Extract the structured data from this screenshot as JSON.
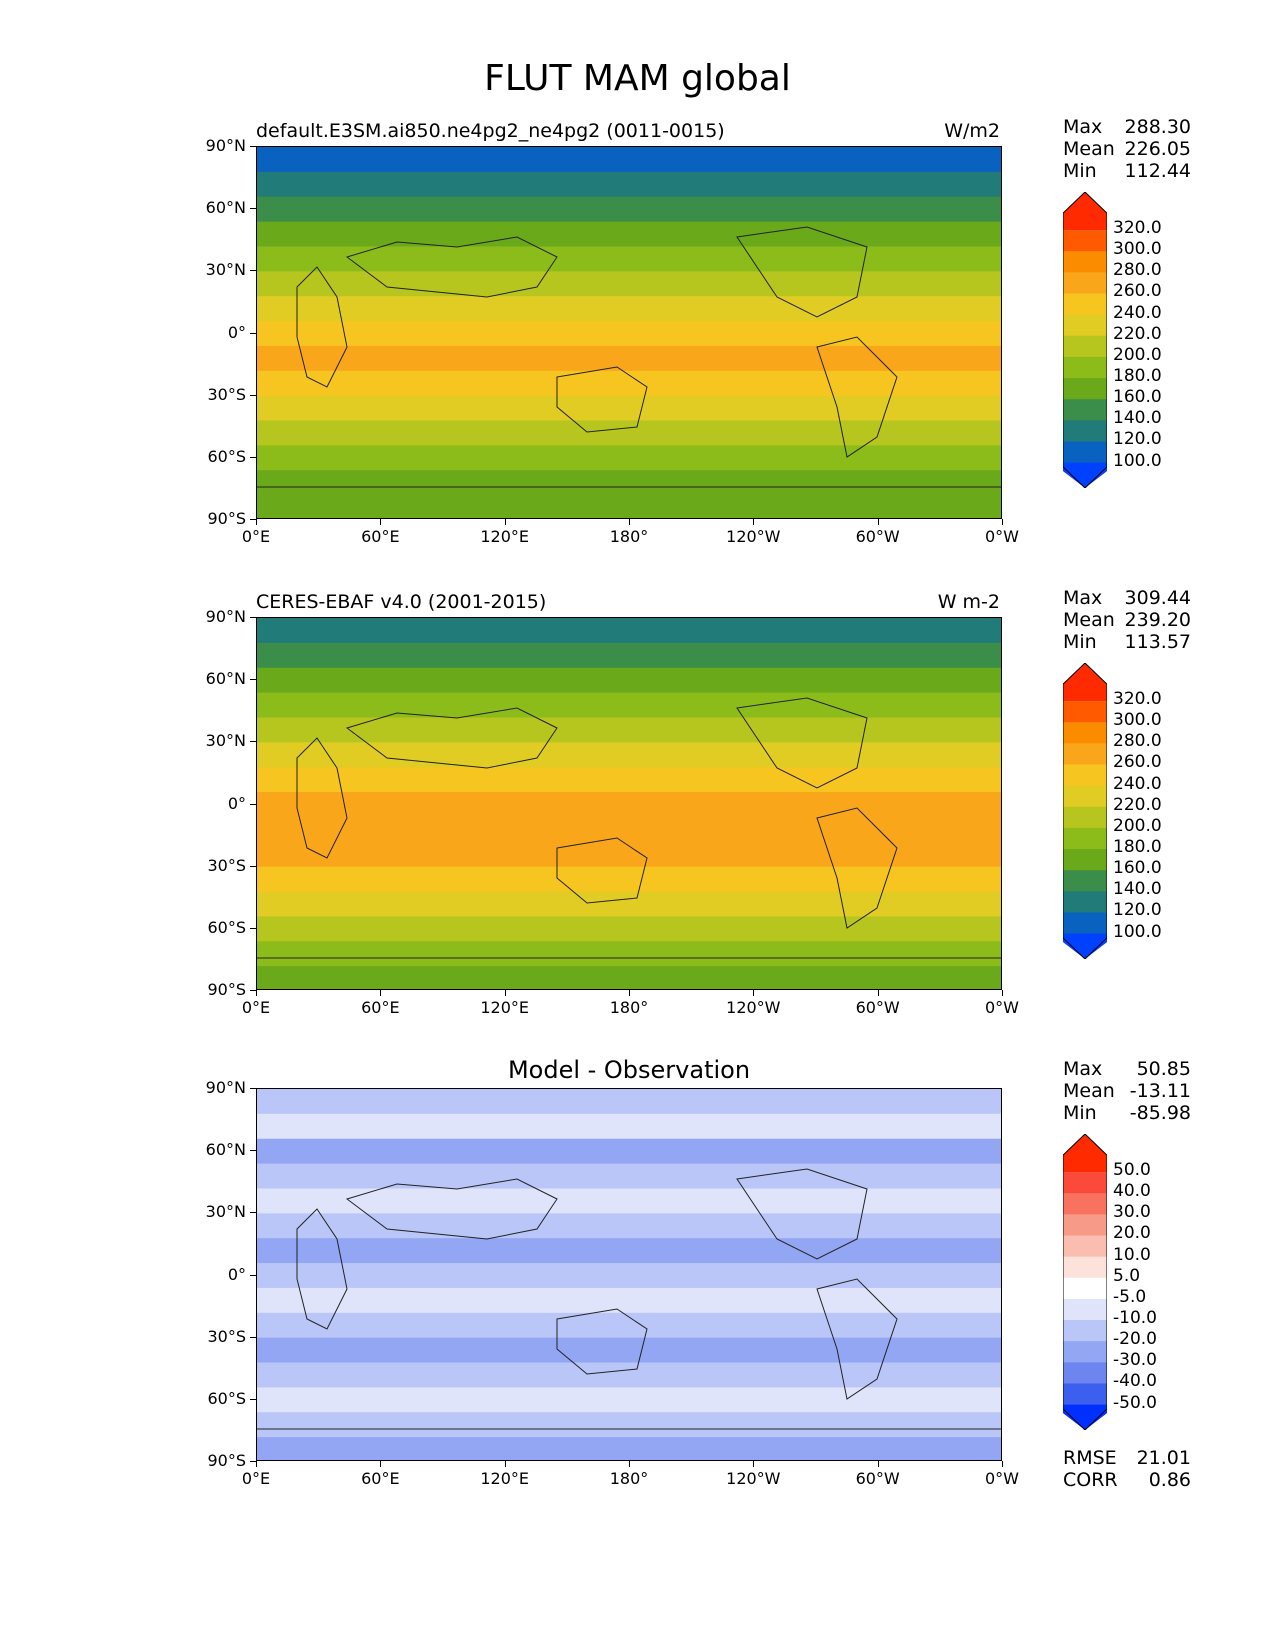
{
  "figure": {
    "title": "FLUT MAM global"
  },
  "axes": {
    "y_ticks": [
      "90°N",
      "60°N",
      "30°N",
      "0°",
      "30°S",
      "60°S",
      "90°S"
    ],
    "x_ticks": [
      "0°E",
      "60°E",
      "120°E",
      "180°",
      "120°W",
      "60°W",
      "0°W"
    ]
  },
  "panels": [
    {
      "title_left": "default.E3SM.ai850.ne4pg2_ne4pg2 (0011-0015)",
      "title_right": "W/m2",
      "title_center": "",
      "stats": [
        {
          "label": "Max",
          "value": "288.30"
        },
        {
          "label": "Mean",
          "value": "226.05"
        },
        {
          "label": "Min",
          "value": "112.44"
        }
      ],
      "colorbar_labels": [
        "320.0",
        "300.0",
        "280.0",
        "260.0",
        "240.0",
        "220.0",
        "200.0",
        "180.0",
        "160.0",
        "140.0",
        "120.0",
        "100.0"
      ],
      "colorbar_colors": [
        "#ff2a00",
        "#ff5a00",
        "#fb8c00",
        "#f9a61a",
        "#f7c51f",
        "#e0cc23",
        "#b7c51f",
        "#8cbc1a",
        "#6aa91a",
        "#3a8e4a",
        "#217b78",
        "#0a62c0",
        "#0040ff"
      ],
      "bands": [
        "#0a62c0",
        "#217b78",
        "#3a8e4a",
        "#6aa91a",
        "#8cbc1a",
        "#b7c51f",
        "#e0cc23",
        "#f7c51f",
        "#f9a61a",
        "#f7c51f",
        "#e0cc23",
        "#b7c51f",
        "#8cbc1a",
        "#6aa91a",
        "#6aa91a"
      ]
    },
    {
      "title_left": "CERES-EBAF v4.0 (2001-2015)",
      "title_right": "W m-2",
      "title_center": "",
      "stats": [
        {
          "label": "Max",
          "value": "309.44"
        },
        {
          "label": "Mean",
          "value": "239.20"
        },
        {
          "label": "Min",
          "value": "113.57"
        }
      ],
      "colorbar_labels": [
        "320.0",
        "300.0",
        "280.0",
        "260.0",
        "240.0",
        "220.0",
        "200.0",
        "180.0",
        "160.0",
        "140.0",
        "120.0",
        "100.0"
      ],
      "colorbar_colors": [
        "#ff2a00",
        "#ff5a00",
        "#fb8c00",
        "#f9a61a",
        "#f7c51f",
        "#e0cc23",
        "#b7c51f",
        "#8cbc1a",
        "#6aa91a",
        "#3a8e4a",
        "#217b78",
        "#0a62c0",
        "#0040ff"
      ],
      "bands": [
        "#217b78",
        "#3a8e4a",
        "#6aa91a",
        "#8cbc1a",
        "#b7c51f",
        "#e0cc23",
        "#f7c51f",
        "#f9a61a",
        "#f9a61a",
        "#f9a61a",
        "#f7c51f",
        "#e0cc23",
        "#b7c51f",
        "#8cbc1a",
        "#6aa91a"
      ]
    },
    {
      "title_left": "",
      "title_right": "",
      "title_center": "Model - Observation",
      "stats": [
        {
          "label": "Max",
          "value": "50.85"
        },
        {
          "label": "Mean",
          "value": "-13.11"
        },
        {
          "label": "Min",
          "value": "-85.98"
        }
      ],
      "colorbar_labels": [
        "50.0",
        "40.0",
        "30.0",
        "20.0",
        "10.0",
        "5.0",
        "-5.0",
        "-10.0",
        "-20.0",
        "-30.0",
        "-40.0",
        "-50.0"
      ],
      "colorbar_colors": [
        "#ff2a00",
        "#fb4a3a",
        "#f8725f",
        "#f89a88",
        "#fbbdb0",
        "#fde2dc",
        "#ffffff",
        "#dfe4fb",
        "#b9c6f7",
        "#93a6f3",
        "#6d86ef",
        "#3d5ff0",
        "#0030ff"
      ],
      "bands": [
        "#b9c6f7",
        "#dfe4fb",
        "#93a6f3",
        "#b9c6f7",
        "#dfe4fb",
        "#b9c6f7",
        "#93a6f3",
        "#b9c6f7",
        "#dfe4fb",
        "#b9c6f7",
        "#93a6f3",
        "#b9c6f7",
        "#dfe4fb",
        "#b9c6f7",
        "#93a6f3"
      ],
      "footer": [
        {
          "label": "RMSE",
          "value": "21.01"
        },
        {
          "label": "CORR",
          "value": "0.86"
        }
      ]
    }
  ]
}
